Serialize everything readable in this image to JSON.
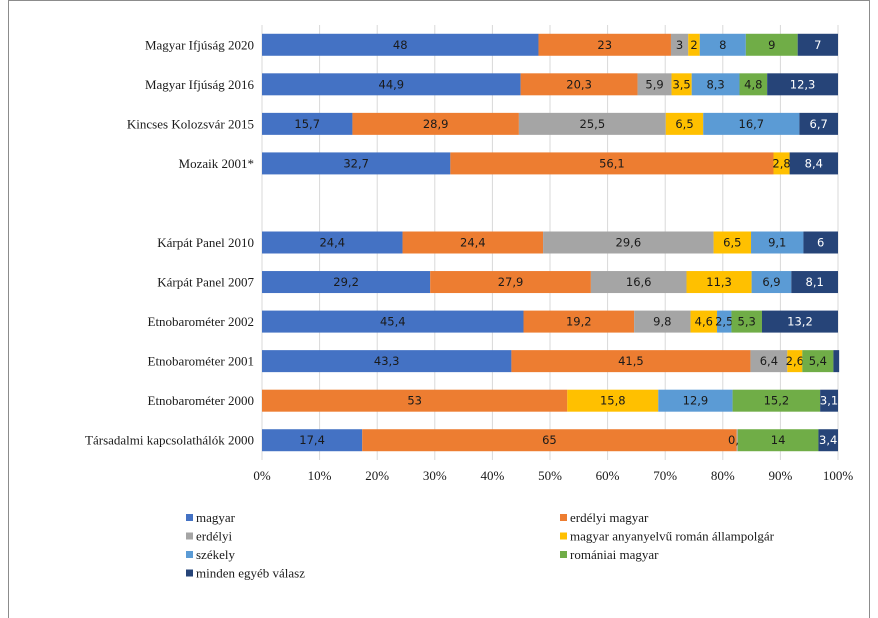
{
  "chart_data": {
    "type": "bar",
    "orientation": "horizontal",
    "stacked": "percent",
    "categories": [
      "Magyar Ifjúság 2020",
      "Magyar Ifjúság 2016",
      "Kincses Kolozsvár 2015",
      "Mozaik 2001*",
      "",
      "Kárpát Panel 2010",
      "Kárpát Panel 2007",
      "Etnobarométer 2002",
      "Etnobarométer 2001",
      "Etnobarométer 2000",
      "Társadalmi kapcsolathálók 2000"
    ],
    "series": [
      {
        "name": "magyar",
        "color": "#4472C4",
        "label_color": "#1a1a1a",
        "values": [
          48,
          44.9,
          15.7,
          32.7,
          null,
          24.4,
          29.2,
          45.4,
          43.3,
          0,
          17.4
        ]
      },
      {
        "name": "erdélyi magyar",
        "color": "#ED7D31",
        "label_color": "#1a1a1a",
        "values": [
          23,
          20.3,
          28.9,
          56.1,
          null,
          24.4,
          27.9,
          19.2,
          41.5,
          53,
          65
        ]
      },
      {
        "name": "erdélyi",
        "color": "#A5A5A5",
        "label_color": "#1a1a1a",
        "values": [
          3,
          5.9,
          25.5,
          0,
          null,
          29.6,
          16.6,
          9.8,
          6.4,
          0,
          0.2
        ]
      },
      {
        "name": "magyar anyanyelvű román állampolgár",
        "color": "#FFC000",
        "label_color": "#1a1a1a",
        "values": [
          2,
          3.5,
          6.5,
          2.8,
          null,
          6.5,
          11.3,
          4.6,
          2.6,
          15.8,
          0
        ]
      },
      {
        "name": "székely",
        "color": "#5B9BD5",
        "label_color": "#1a1a1a",
        "values": [
          8,
          8.3,
          16.7,
          0,
          null,
          9.1,
          6.9,
          2.5,
          0,
          12.9,
          0
        ]
      },
      {
        "name": "romániai magyar",
        "color": "#70AD47",
        "label_color": "#1a1a1a",
        "values": [
          9,
          4.8,
          0,
          0,
          null,
          0,
          0,
          5.3,
          5.4,
          15.2,
          14
        ]
      },
      {
        "name": "minden egyéb válasz",
        "color": "#264478",
        "label_color": "#ffffff",
        "values": [
          7,
          12.3,
          6.7,
          8.4,
          null,
          6,
          8.1,
          13.2,
          1,
          3.1,
          3.4
        ]
      }
    ],
    "labels": [
      [
        "48",
        "23",
        "3",
        "2",
        "8",
        "9",
        "7"
      ],
      [
        "44,9",
        "20,3",
        "5,9",
        "3,5",
        "8,3",
        "4,8",
        "12,3"
      ],
      [
        "15,7",
        "28,9",
        "25,5",
        "6,5",
        "16,7",
        "",
        "6,7"
      ],
      [
        "32,7",
        "56,1",
        "",
        "2,8",
        "",
        "",
        "8,4"
      ],
      [],
      [
        "24,4",
        "24,4",
        "29,6",
        "6,5",
        "9,1",
        "",
        "6"
      ],
      [
        "29,2",
        "27,9",
        "16,6",
        "11,3",
        "6,9",
        "",
        "8,1"
      ],
      [
        "45,4",
        "19,2",
        "9,8",
        "4,6",
        "2,5",
        "5,3",
        "13,2"
      ],
      [
        "43,3",
        "41,5",
        "6,4",
        "2,6",
        "",
        "5,4",
        ""
      ],
      [
        "",
        "53",
        "",
        "15,8",
        "12,9",
        "15,2",
        "3,1"
      ],
      [
        "17,4",
        "65",
        "0,2",
        "",
        "",
        "14",
        "3,4"
      ]
    ],
    "x_ticks": [
      "0%",
      "10%",
      "20%",
      "30%",
      "40%",
      "50%",
      "60%",
      "70%",
      "80%",
      "90%",
      "100%"
    ],
    "xlim": [
      0,
      100
    ],
    "grid": true,
    "legend_position": "bottom"
  }
}
